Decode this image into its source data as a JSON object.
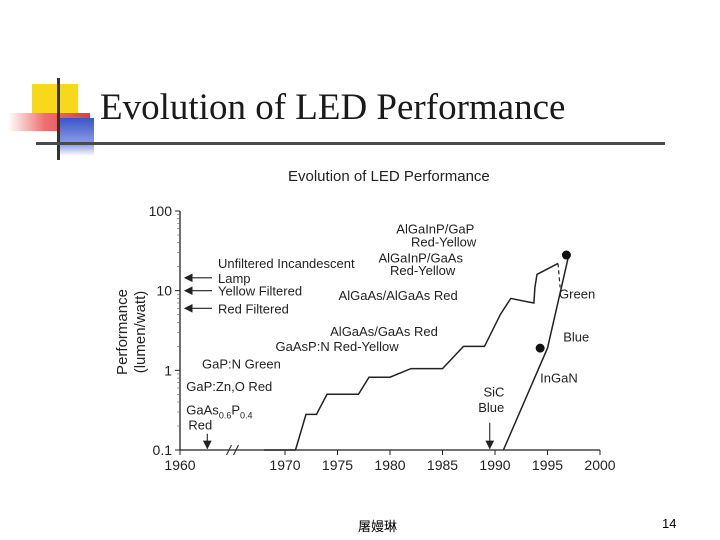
{
  "slide": {
    "title": "Evolution of LED Performance",
    "footer_author": "屠嫚琳",
    "page_number": "14"
  },
  "chart_data": {
    "type": "line",
    "title": "Evolution of LED Performance",
    "xlabel": "",
    "ylabel_line1": "Performance",
    "ylabel_line2": "(lumen/watt)",
    "xlim": [
      1960,
      2000
    ],
    "ylim": [
      0.1,
      100
    ],
    "y_scale": "log",
    "x_ticks": [
      1960,
      1970,
      1975,
      1980,
      1985,
      1990,
      1995,
      2000
    ],
    "x_tick_labels": [
      "1960",
      "1970",
      "1975",
      "1980",
      "1985",
      "1990",
      "1995",
      "2000"
    ],
    "y_ticks": [
      0.1,
      1,
      10,
      100
    ],
    "y_tick_labels": [
      "0.1",
      "1",
      "10",
      "100"
    ],
    "axis_break": "1960-1970",
    "grid": false,
    "series": [
      {
        "points": [
          [
            1968,
            0.1
          ],
          [
            1971,
            0.1
          ],
          [
            1972,
            0.28
          ],
          [
            1973,
            0.28
          ],
          [
            1974,
            0.5
          ],
          [
            1977,
            0.5
          ],
          [
            1978,
            0.82
          ],
          [
            1980,
            0.82
          ],
          [
            1982,
            1.05
          ],
          [
            1985,
            1.05
          ],
          [
            1987,
            2.0
          ],
          [
            1989,
            2.0
          ],
          [
            1990.5,
            5.0
          ],
          [
            1991.5,
            8.0
          ],
          [
            1993,
            7.3
          ],
          [
            1993.7,
            7.0
          ],
          [
            1993.8,
            11.0
          ],
          [
            1994,
            16.0
          ],
          [
            1996,
            22.0
          ]
        ]
      },
      {
        "points": [
          [
            1990.8,
            0.1
          ],
          [
            1995,
            1.9
          ],
          [
            1997,
            27.0
          ]
        ]
      }
    ],
    "markers": [
      {
        "year": 1994.3,
        "value": 1.9
      },
      {
        "year": 1996.8,
        "value": 28.0
      }
    ],
    "arrow_labels": [
      {
        "lines": [
          "Unfiltered Incandescent",
          "Lamp"
        ],
        "value": 14.5
      },
      {
        "lines": [
          "Yellow Filtered"
        ],
        "value": 10.0
      },
      {
        "lines": [
          "Red Filtered"
        ],
        "value": 6.0
      }
    ],
    "annotations": [
      {
        "text": "AlGaInP/GaP",
        "x": 1980.6,
        "y": 52.0
      },
      {
        "text": "Red-Yellow",
        "x": 1982.0,
        "y": 36.0
      },
      {
        "text": "AlGaInP/GaAs",
        "x": 1978.9,
        "y": 22.5
      },
      {
        "text": "Red-Yellow",
        "x": 1980.0,
        "y": 15.8
      },
      {
        "text": "AlGaAs/AlGaAs Red",
        "x": 1975.1,
        "y": 7.6
      },
      {
        "text": "Green",
        "x": 1996.1,
        "y": 8.0
      },
      {
        "text": "AlGaAs/GaAs Red",
        "x": 1974.3,
        "y": 2.7
      },
      {
        "text": "Blue",
        "x": 1996.5,
        "y": 2.3
      },
      {
        "text": "GaAsP:N Red-Yellow",
        "x": 1969.1,
        "y": 1.75
      },
      {
        "text": "GaP:N Green",
        "x": 1962.1,
        "y": 1.05
      },
      {
        "text": "InGaN",
        "x": 1994.3,
        "y": 0.7
      },
      {
        "text": "GaP:Zn,O Red",
        "x": 1960.6,
        "y": 0.55
      },
      {
        "text": "SiC",
        "x": 1988.9,
        "y": 0.47
      },
      {
        "text": "Blue",
        "x": 1988.4,
        "y": 0.3
      },
      {
        "text": "Red",
        "x": 1960.8,
        "y": 0.18
      }
    ],
    "gaas_label": {
      "base": "GaAs",
      "sub1": "0.6",
      "mid": "P",
      "sub2": "0.4",
      "x": 1960.6,
      "y": 0.28
    },
    "sic_arrow": {
      "year": 1989.5,
      "from": 0.22,
      "to": 0.105
    },
    "gaas_arrow": {
      "year": 1962.6,
      "from": 0.16,
      "to": 0.105
    }
  }
}
